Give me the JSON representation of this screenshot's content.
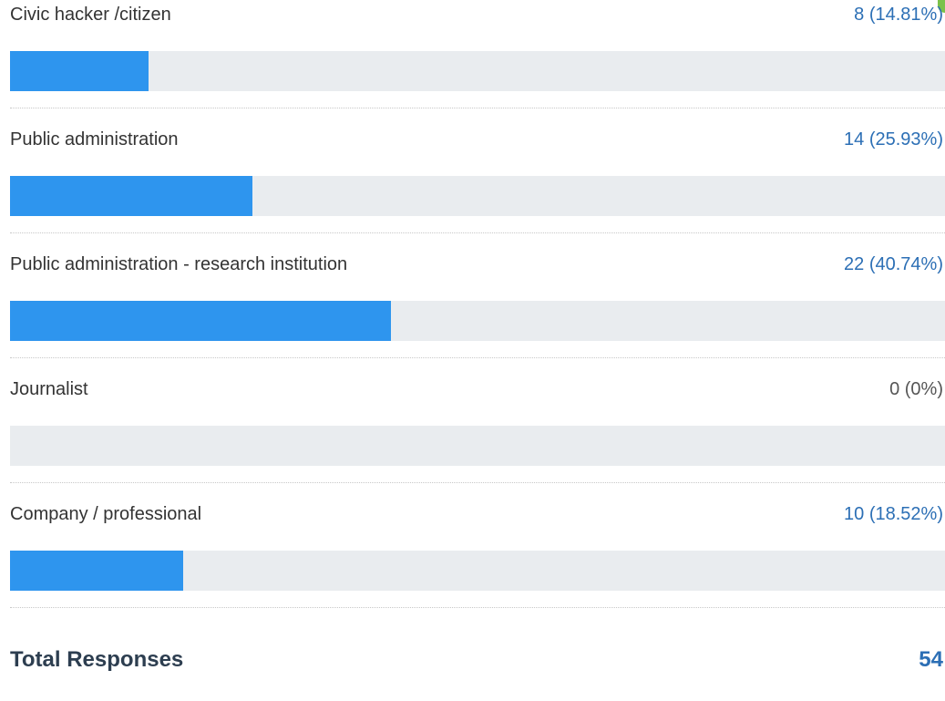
{
  "chart_data": {
    "type": "bar",
    "orientation": "horizontal",
    "categories": [
      "Civic hacker /citizen",
      "Public administration",
      "Public administration - research institution",
      "Journalist",
      "Company / professional"
    ],
    "values": [
      8,
      14,
      22,
      0,
      10
    ],
    "value_labels": [
      "8 (14.81%)",
      "14 (25.93%)",
      "22 (40.74%)",
      "0 (0%)",
      "10 (18.52%)"
    ],
    "xlim": [
      0,
      54
    ],
    "grid": false,
    "legend": "none"
  },
  "summary": {
    "total_label": "Total Responses",
    "total_value": "54"
  },
  "colors": {
    "bar_fill": "#2e95ee",
    "bar_track": "#e9ecef",
    "value_text": "#2c6fb5",
    "label_text": "#333333",
    "accent_corner": "#7cc24a"
  }
}
